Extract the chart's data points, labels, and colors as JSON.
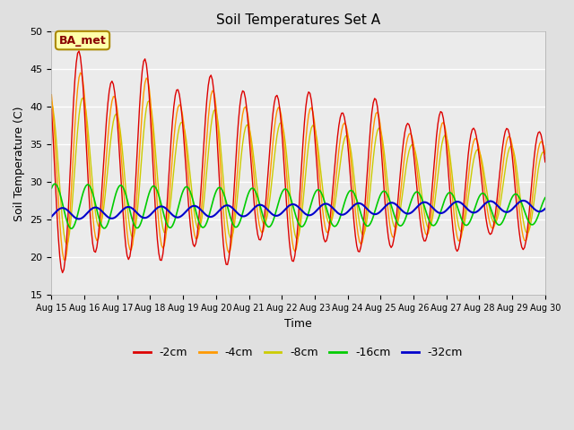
{
  "title": "Soil Temperatures Set A",
  "xlabel": "Time",
  "ylabel": "Soil Temperature (C)",
  "ylim": [
    15,
    50
  ],
  "yticks": [
    15,
    20,
    25,
    30,
    35,
    40,
    45,
    50
  ],
  "x_labels": [
    "Aug 15",
    "Aug 16",
    "Aug 17",
    "Aug 18",
    "Aug 19",
    "Aug 20",
    "Aug 21",
    "Aug 22",
    "Aug 23",
    "Aug 24",
    "Aug 25",
    "Aug 26",
    "Aug 27",
    "Aug 28",
    "Aug 29",
    "Aug 30"
  ],
  "series_colors": [
    "#dd0000",
    "#ff9900",
    "#cccc00",
    "#00cc00",
    "#0000cc"
  ],
  "series_labels": [
    "-2cm",
    "-4cm",
    "-8cm",
    "-16cm",
    "-32cm"
  ],
  "background_color": "#e0e0e0",
  "plot_bg_color": "#ebebeb",
  "annotation_text": "BA_met",
  "annotation_bg": "#ffffaa",
  "annotation_border": "#aa8800",
  "annotation_text_color": "#880000",
  "figsize": [
    6.4,
    4.8
  ],
  "dpi": 100
}
